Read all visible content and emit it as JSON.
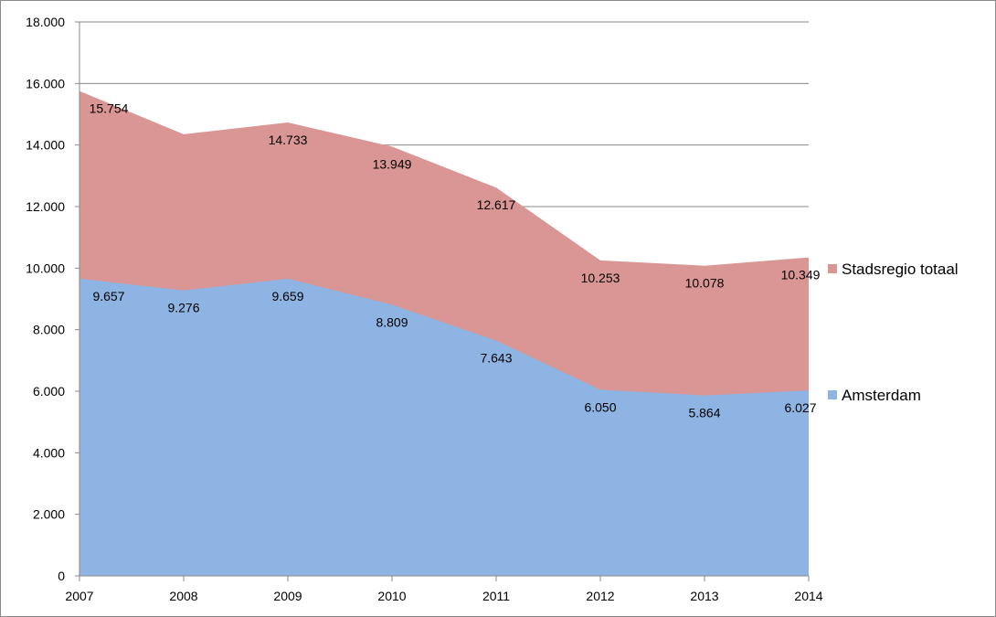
{
  "chart_data": {
    "type": "area",
    "stacked": false,
    "x": [
      "2007",
      "2008",
      "2009",
      "2010",
      "2011",
      "2012",
      "2013",
      "2014"
    ],
    "series": [
      {
        "name": "Stadsregio totaal",
        "color": "#d99694",
        "values": [
          15754,
          14350,
          14733,
          13949,
          12617,
          10253,
          10078,
          10349
        ],
        "labels": [
          "15.754",
          "",
          "14.733",
          "13.949",
          "12.617",
          "10.253",
          "10.078",
          "10.349"
        ]
      },
      {
        "name": "Amsterdam",
        "color": "#8eb4e3",
        "values": [
          9657,
          9276,
          9659,
          8809,
          7643,
          6050,
          5864,
          6027
        ],
        "labels": [
          "9.657",
          "9.276",
          "9.659",
          "8.809",
          "7.643",
          "6.050",
          "5.864",
          "6.027"
        ]
      }
    ],
    "ylim": [
      0,
      18000
    ],
    "yticks": [
      0,
      2000,
      4000,
      6000,
      8000,
      10000,
      12000,
      14000,
      16000,
      18000
    ],
    "ytick_labels": [
      "0",
      "2.000",
      "4.000",
      "6.000",
      "8.000",
      "10.000",
      "12.000",
      "14.000",
      "16.000",
      "18.000"
    ],
    "grid": true,
    "legend": "right",
    "title": "",
    "xlabel": "",
    "ylabel": ""
  }
}
